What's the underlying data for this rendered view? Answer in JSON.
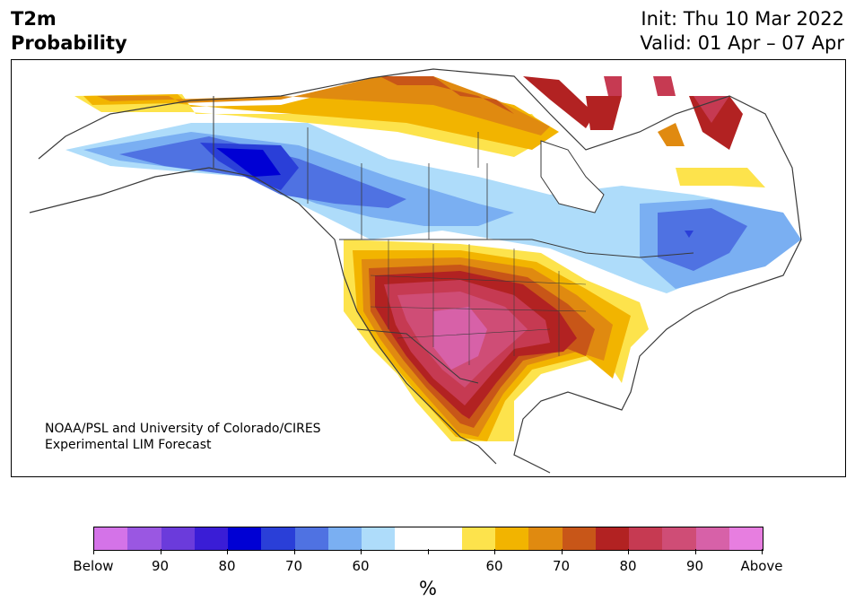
{
  "header": {
    "variable": "T2m",
    "subtitle": "Probability",
    "init": "Init: Thu 10 Mar 2022",
    "valid": "Valid: 01 Apr – 07 Apr"
  },
  "map": {
    "region": "North America",
    "credit_line1": "NOAA/PSL and University of Colorado/CIRES",
    "credit_line2": "Experimental LIM Forecast",
    "colors": {
      "coast": "#3a3a3a",
      "border": "#3a3a3a"
    }
  },
  "colorbar": {
    "unit": "%",
    "below_colors": [
      "#d473e8",
      "#9a57e2",
      "#6b3bdb",
      "#3a1dd6",
      "#0000d4",
      "#2a3fd8",
      "#4f72e2",
      "#7aaff2",
      "#aedcfa"
    ],
    "neutral_color": "#ffffff",
    "above_colors": [
      "#fde34c",
      "#f2b400",
      "#e08a10",
      "#c85618",
      "#b22222",
      "#c63a52",
      "#cf4d76",
      "#d761a8",
      "#e77ee0"
    ],
    "labels": [
      "Below",
      "90",
      "80",
      "70",
      "60",
      "",
      "60",
      "70",
      "80",
      "90",
      "Above"
    ]
  }
}
